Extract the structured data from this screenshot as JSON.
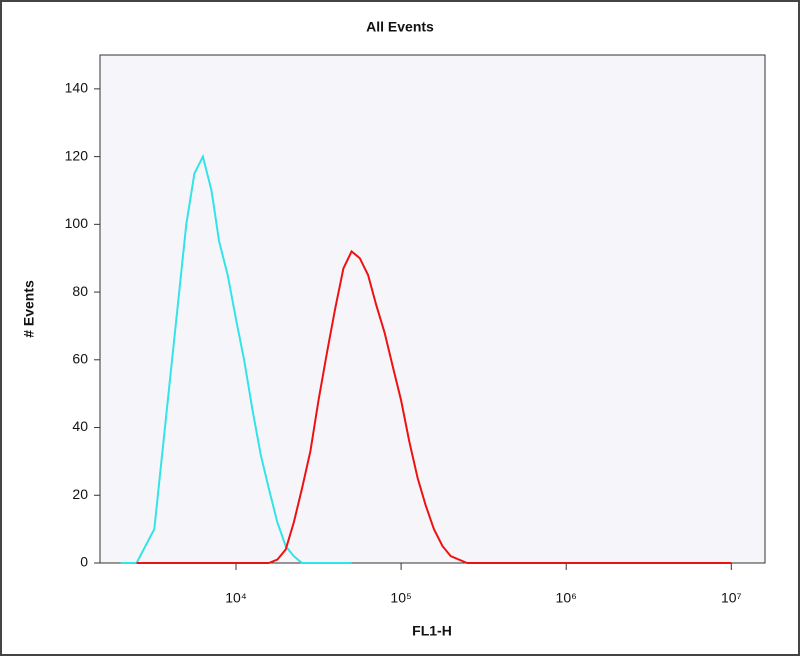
{
  "chart_data": {
    "type": "line",
    "title": "All Events",
    "x_label": "FL1-H",
    "y_label": "# Events",
    "xscale": "log",
    "xlim": [
      1500,
      16000000
    ],
    "ylim": [
      0,
      150
    ],
    "xticks": [
      {
        "value": 10000,
        "label": "10⁴"
      },
      {
        "value": 100000,
        "label": "10⁵"
      },
      {
        "value": 1000000,
        "label": "10⁶"
      },
      {
        "value": 10000000,
        "label": "10⁷"
      }
    ],
    "yticks": [
      0,
      20,
      40,
      60,
      80,
      100,
      120,
      140
    ],
    "x": [
      2000,
      2500,
      3200,
      4000,
      5000,
      5600,
      6300,
      7100,
      7900,
      8900,
      10000,
      11200,
      12600,
      14100,
      15800,
      17800,
      20000,
      22400,
      25100,
      28200,
      31600,
      35500,
      39800,
      44700,
      50100,
      56200,
      63100,
      70800,
      79400,
      89100,
      100000,
      112000,
      126000,
      141000,
      158000,
      178000,
      200000,
      251000,
      316000,
      500000,
      1000000,
      10000000
    ],
    "series": [
      {
        "color": "#33e3e8",
        "values": [
          0,
          0,
          10,
          55,
          100,
          115,
          120,
          110,
          95,
          85,
          72,
          60,
          45,
          32,
          22,
          12,
          5,
          2,
          0,
          0,
          0,
          0,
          0,
          0,
          0,
          null,
          null,
          null,
          null,
          null,
          null,
          null,
          null,
          null,
          null,
          null,
          null,
          null,
          null,
          null,
          null,
          null
        ]
      },
      {
        "color": "#ee1111",
        "values": [
          null,
          0,
          0,
          0,
          0,
          0,
          0,
          0,
          0,
          0,
          0,
          0,
          0,
          0,
          0,
          1,
          4,
          12,
          22,
          33,
          48,
          62,
          75,
          87,
          92,
          90,
          85,
          76,
          68,
          58,
          48,
          36,
          25,
          17,
          10,
          5,
          2,
          0,
          0,
          0,
          0,
          0
        ]
      }
    ]
  }
}
